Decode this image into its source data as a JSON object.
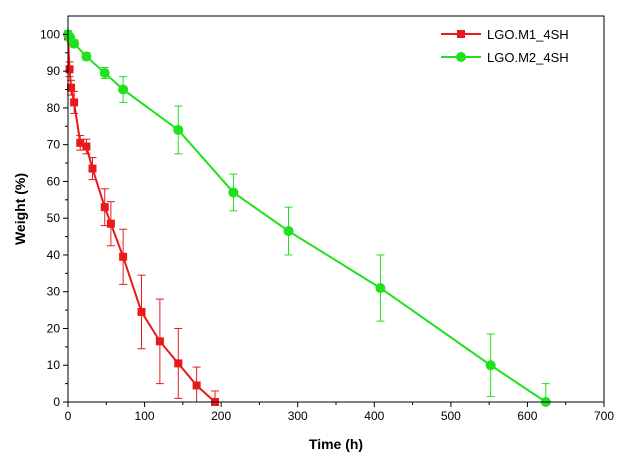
{
  "chart_data": {
    "type": "line",
    "xlabel": "Time (h)",
    "ylabel": "Weight (%)",
    "xlim": [
      0,
      700
    ],
    "ylim": [
      0,
      105
    ],
    "xticks": [
      "0",
      "100",
      "200",
      "300",
      "400",
      "500",
      "600",
      "700"
    ],
    "yticks": [
      "0",
      "10",
      "20",
      "30",
      "40",
      "50",
      "60",
      "70",
      "80",
      "90",
      "100"
    ],
    "grid": false,
    "legend_position": "top-right",
    "series": [
      {
        "name": "LGO.M1_4SH",
        "color": "#e8191b",
        "marker": "square",
        "x": [
          0,
          2,
          4,
          8,
          16,
          24,
          32,
          48,
          56,
          72,
          96,
          120,
          144,
          168,
          192
        ],
        "y": [
          99.5,
          90.5,
          85.5,
          81.5,
          70.5,
          69.5,
          63.5,
          53,
          48.5,
          39.5,
          24.5,
          16.5,
          10.5,
          4.5,
          0
        ],
        "err": [
          1,
          2,
          2,
          3,
          2,
          2,
          3,
          5,
          6,
          7.5,
          10,
          11.5,
          9.5,
          5,
          3
        ]
      },
      {
        "name": "LGO.M2_4SH",
        "color": "#20e11d",
        "marker": "circle",
        "x": [
          0,
          3,
          8,
          24,
          48,
          72,
          144,
          216,
          288,
          408,
          552,
          624
        ],
        "y": [
          100,
          99,
          97.5,
          94,
          89.5,
          85,
          74,
          57,
          46.5,
          31,
          10,
          0
        ],
        "err": [
          1,
          1,
          1,
          1,
          1.5,
          3.5,
          6.5,
          5,
          6.5,
          9,
          8.5,
          5
        ]
      }
    ]
  }
}
